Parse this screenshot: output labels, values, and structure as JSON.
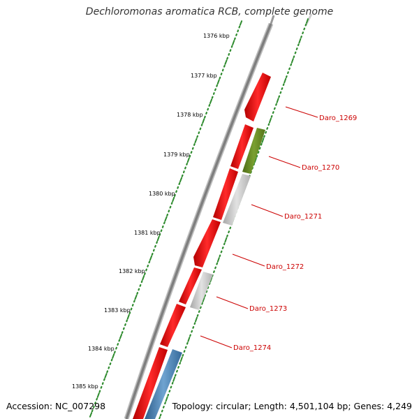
{
  "title": "Dechloromonas aromatica RCB, complete genome",
  "footer": {
    "accession": "Accession: NC_007298",
    "summary": "Topology: circular; Length: 4,501,104 bp; Genes: 4,249"
  },
  "colors": {
    "backbone": "#7f7f7f",
    "tick_major": "#2e8b2e",
    "tick_minor": "#1a7a1a",
    "gene_red": "#ff0000",
    "gene_green": "#6b8e23",
    "gene_gray": "#c8c8c8",
    "gene_blue": "#4682b4",
    "label": "#cc0000"
  },
  "ticks_outer": [
    "1376 kbp",
    "1377 kbp",
    "1378 kbp",
    "1379 kbp",
    "1380 kbp",
    "1381 kbp",
    "1382 kbp",
    "1383 kbp",
    "1384 kbp",
    "1385 kbp"
  ],
  "gene_labels": [
    "Daro_1269",
    "Daro_1270",
    "Daro_1271",
    "Daro_1272",
    "Daro_1273",
    "Daro_1274"
  ]
}
